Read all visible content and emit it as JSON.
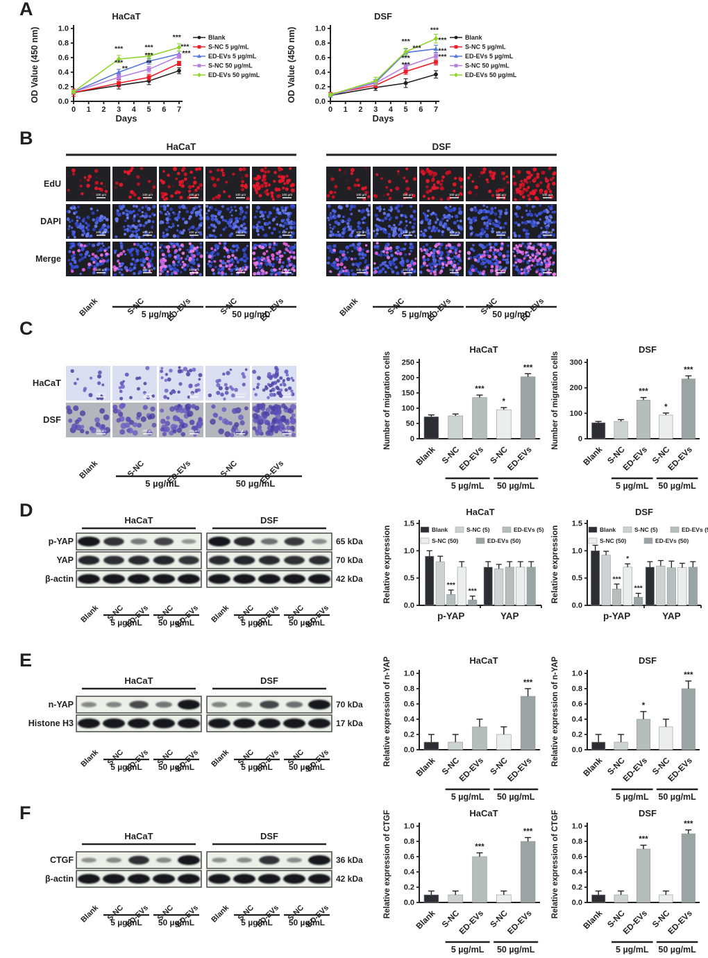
{
  "panels": {
    "a": {
      "label": "A"
    },
    "b": {
      "label": "B",
      "titles": [
        "HaCaT",
        "DSF"
      ],
      "row_labels": [
        "EdU",
        "DAPI",
        "Merge"
      ],
      "col_labels": [
        "Blank",
        "S-NC",
        "ED-EVs",
        "S-NC",
        "ED-EVs"
      ],
      "dose_labels": [
        "5 µg/mL",
        "50 µg/mL"
      ],
      "scale_bar": "100 µm",
      "edu_counts": [
        [
          16,
          18,
          42,
          26,
          58
        ],
        [
          18,
          20,
          46,
          28,
          66
        ]
      ]
    },
    "c": {
      "label": "C",
      "row_labels": [
        "HaCaT",
        "DSF"
      ],
      "col_labels": [
        "Blank",
        "S-NC",
        "ED-EVs",
        "S-NC",
        "ED-EVs"
      ],
      "dose_labels": [
        "5 µg/mL",
        "50 µg/mL"
      ],
      "scale_bar": "100 µm",
      "cell_counts": [
        [
          14,
          16,
          36,
          22,
          55
        ],
        [
          26,
          30,
          52,
          22,
          88
        ]
      ]
    },
    "d": {
      "label": "D",
      "titles": [
        "HaCaT",
        "DSF"
      ],
      "lane_labels": [
        "Blank",
        "S-NC",
        "ED-EVs",
        "S-NC",
        "ED-EVs"
      ],
      "dose_labels": [
        "5 µg/mL",
        "50 µg/mL"
      ],
      "rows": [
        {
          "name": "p-YAP",
          "kda": "65 kDa",
          "bands": [
            [
              1,
              0.82,
              0.4,
              0.72,
              0.22
            ],
            [
              1,
              0.88,
              0.45,
              0.78,
              0.28
            ]
          ]
        },
        {
          "name": "YAP",
          "kda": "70 kDa",
          "bands": [
            [
              0.9,
              0.85,
              0.88,
              0.9,
              0.82
            ],
            [
              0.88,
              0.9,
              0.88,
              0.85,
              0.86
            ]
          ]
        },
        {
          "name": "β-actin",
          "kda": "42 kDa",
          "bands": [
            [
              1,
              1,
              1,
              1,
              1
            ],
            [
              1,
              1,
              1,
              1,
              1
            ]
          ]
        }
      ]
    },
    "e": {
      "label": "E",
      "titles": [
        "HaCaT",
        "DSF"
      ],
      "lane_labels": [
        "Blank",
        "S-NC",
        "ED-EVs",
        "S-NC",
        "ED-EVs"
      ],
      "dose_labels": [
        "5 µg/mL",
        "50 µg/mL"
      ],
      "rows": [
        {
          "name": "n-YAP",
          "kda": "70 kDa",
          "bands": [
            [
              0.3,
              0.32,
              0.68,
              0.42,
              1
            ],
            [
              0.32,
              0.35,
              0.7,
              0.45,
              1
            ]
          ]
        },
        {
          "name": "Histone H3",
          "kda": "17 kDa",
          "bands": [
            [
              1,
              1,
              1,
              1,
              1
            ],
            [
              1,
              1,
              1,
              1,
              1
            ]
          ]
        }
      ]
    },
    "f": {
      "label": "F",
      "titles": [
        "HaCaT",
        "DSF"
      ],
      "lane_labels": [
        "Blank",
        "S-NC",
        "ED-EVs",
        "S-NC",
        "ED-EVs"
      ],
      "dose_labels": [
        "5 µg/mL",
        "50 µg/mL"
      ],
      "rows": [
        {
          "name": "CTGF",
          "kda": "36 kDa",
          "bands": [
            [
              0.25,
              0.3,
              0.85,
              0.3,
              1
            ],
            [
              0.25,
              0.28,
              0.82,
              0.28,
              1
            ]
          ]
        },
        {
          "name": "β-actin",
          "kda": "42 kDa",
          "bands": [
            [
              1,
              1,
              1,
              1,
              1
            ],
            [
              1,
              1,
              1,
              1,
              1
            ]
          ]
        }
      ]
    }
  },
  "palette": {
    "axis": "#231f20",
    "bar_colors": [
      "#2d2d34",
      "#ccd3d2",
      "#b6bebd",
      "#eceeee",
      "#9ba4a4"
    ]
  },
  "chart_data": [
    {
      "id": "a_hacat",
      "type": "line",
      "title": "HaCaT",
      "xlabel": "Days",
      "ylabel": "OD Value (450 nm)",
      "x": [
        0,
        3,
        5,
        7
      ],
      "xticks": [
        0,
        1,
        2,
        3,
        4,
        5,
        6,
        7
      ],
      "ylim": [
        0,
        1.0
      ],
      "yticks": [
        0,
        0.2,
        0.4,
        0.6,
        0.8,
        1.0
      ],
      "series": [
        {
          "name": "Blank",
          "color": "#231f20",
          "marker": "circle",
          "values": [
            0.12,
            0.22,
            0.28,
            0.42
          ],
          "errors": [
            0.02,
            0.05,
            0.05,
            0.04
          ]
        },
        {
          "name": "S-NC 5 µg/mL",
          "color": "#ee1c25",
          "marker": "square",
          "values": [
            0.12,
            0.25,
            0.33,
            0.52
          ],
          "errors": [
            0.05,
            0.05,
            0.04,
            0.03
          ]
        },
        {
          "name": "ED-EVs 5 µg/mL",
          "color": "#5577d9",
          "marker": "triangle",
          "values": [
            0.13,
            0.4,
            0.55,
            0.65
          ],
          "errors": [
            0.02,
            0.04,
            0.04,
            0.04
          ]
        },
        {
          "name": "S-NC 50 µg/mL",
          "color": "#b87de2",
          "marker": "square",
          "values": [
            0.13,
            0.33,
            0.44,
            0.62
          ],
          "errors": [
            0.02,
            0.04,
            0.04,
            0.03
          ]
        },
        {
          "name": "ED-EVs 50 µg/mL",
          "color": "#90d42c",
          "marker": "diamond",
          "values": [
            0.13,
            0.58,
            0.62,
            0.74
          ],
          "errors": [
            0.02,
            0.05,
            0.04,
            0.05
          ]
        }
      ],
      "annotations": [
        {
          "x": 3,
          "y": 0.69,
          "text": "***"
        },
        {
          "x": 3,
          "y": 0.5,
          "text": "***"
        },
        {
          "x": 3.4,
          "y": 0.42,
          "text": "**"
        },
        {
          "x": 5,
          "y": 0.71,
          "text": "***"
        },
        {
          "x": 5,
          "y": 0.6,
          "text": "***"
        },
        {
          "x": 5,
          "y": 0.5,
          "text": "**"
        },
        {
          "x": 6.85,
          "y": 0.85,
          "text": "***"
        },
        {
          "x": 7.1,
          "y": 0.72,
          "text": "***",
          "anchor": "start"
        },
        {
          "x": 7.2,
          "y": 0.63,
          "text": "***",
          "anchor": "start"
        }
      ]
    },
    {
      "id": "a_dsf",
      "type": "line",
      "title": "DSF",
      "xlabel": "Days",
      "ylabel": "OD Value (450 nm)",
      "x": [
        0,
        3,
        5,
        7
      ],
      "xticks": [
        0,
        1,
        2,
        3,
        4,
        5,
        6,
        7
      ],
      "ylim": [
        0,
        1.0
      ],
      "yticks": [
        0,
        0.2,
        0.4,
        0.6,
        0.8,
        1.0
      ],
      "series": [
        {
          "name": "Blank",
          "color": "#231f20",
          "marker": "circle",
          "values": [
            0.08,
            0.19,
            0.25,
            0.37
          ],
          "errors": [
            0.02,
            0.04,
            0.06,
            0.05
          ]
        },
        {
          "name": "S-NC 5 µg/mL",
          "color": "#ee1c25",
          "marker": "square",
          "values": [
            0.1,
            0.22,
            0.41,
            0.54
          ],
          "errors": [
            0.02,
            0.03,
            0.04,
            0.04
          ]
        },
        {
          "name": "ED-EVs 5 µg/mL",
          "color": "#5577d9",
          "marker": "triangle",
          "values": [
            0.08,
            0.26,
            0.67,
            0.72
          ],
          "errors": [
            0.02,
            0.04,
            0.05,
            0.05
          ]
        },
        {
          "name": "S-NC 50 µg/mL",
          "color": "#b87de2",
          "marker": "square",
          "values": [
            0.09,
            0.25,
            0.48,
            0.62
          ],
          "errors": [
            0.02,
            0.03,
            0.04,
            0.04
          ]
        },
        {
          "name": "ED-EVs 50 µg/mL",
          "color": "#90d42c",
          "marker": "diamond",
          "values": [
            0.09,
            0.28,
            0.68,
            0.86
          ],
          "errors": [
            0.02,
            0.05,
            0.05,
            0.06
          ]
        }
      ],
      "annotations": [
        {
          "x": 5,
          "y": 0.79,
          "text": "***"
        },
        {
          "x": 5.45,
          "y": 0.7,
          "text": "***",
          "anchor": "start"
        },
        {
          "x": 5,
          "y": 0.56,
          "text": "***"
        },
        {
          "x": 5,
          "y": 0.47,
          "text": "***"
        },
        {
          "x": 6.9,
          "y": 0.95,
          "text": "***"
        },
        {
          "x": 7.15,
          "y": 0.81,
          "text": "***",
          "anchor": "start"
        },
        {
          "x": 7.15,
          "y": 0.66,
          "text": "***",
          "anchor": "start"
        },
        {
          "x": 7.15,
          "y": 0.58,
          "text": "***",
          "anchor": "start"
        }
      ]
    },
    {
      "id": "c_hacat",
      "type": "bar",
      "title": "HaCaT",
      "ylabel": "Number of migration cells",
      "ylim": [
        0,
        250
      ],
      "yticks": [
        0,
        50,
        100,
        150,
        200,
        250
      ],
      "categories": [
        "Blank",
        "S-NC",
        "ED-EVs",
        "S-NC",
        "ED-EVs"
      ],
      "values": [
        72,
        75,
        135,
        95,
        203
      ],
      "errors": [
        6,
        6,
        8,
        7,
        10
      ],
      "sig": [
        "",
        "",
        "***",
        "*",
        "***"
      ],
      "dose_groups": [
        {
          "label": "5 µg/mL",
          "from": 1,
          "to": 2
        },
        {
          "label": "50 µg/mL",
          "from": 3,
          "to": 4
        }
      ]
    },
    {
      "id": "c_dsf",
      "type": "bar",
      "title": "DSF",
      "ylabel": "Number of migration cells",
      "ylim": [
        0,
        300
      ],
      "yticks": [
        0,
        100,
        200,
        300
      ],
      "categories": [
        "Blank",
        "S-NC",
        "ED-EVs",
        "S-NC",
        "ED-EVs"
      ],
      "values": [
        63,
        68,
        152,
        93,
        235
      ],
      "errors": [
        5,
        7,
        10,
        8,
        12
      ],
      "sig": [
        "",
        "",
        "***",
        "*",
        "***"
      ],
      "dose_groups": [
        {
          "label": "5 µg/mL",
          "from": 1,
          "to": 2
        },
        {
          "label": "50 µg/mL",
          "from": 3,
          "to": 4
        }
      ]
    },
    {
      "id": "d_hacat",
      "type": "groupbar",
      "title": "HaCaT",
      "ylabel": "Relative expression",
      "ylim": [
        0,
        1.5
      ],
      "yticks": [
        0,
        0.5,
        1.0,
        1.5
      ],
      "groups": [
        "p-YAP",
        "YAP"
      ],
      "legend": [
        "Blank",
        "S-NC (5)",
        "ED-EVs (5)",
        "S-NC (50)",
        "ED-EVs (50)"
      ],
      "values": [
        [
          0.9,
          0.8,
          0.2,
          0.7,
          0.1
        ],
        [
          0.7,
          0.67,
          0.7,
          0.7,
          0.7
        ]
      ],
      "errors": [
        [
          0.1,
          0.1,
          0.08,
          0.1,
          0.07
        ],
        [
          0.1,
          0.08,
          0.1,
          0.1,
          0.1
        ]
      ],
      "sig": [
        [
          "",
          "",
          "***",
          "",
          "***"
        ],
        [
          "",
          "",
          "",
          "",
          ""
        ]
      ]
    },
    {
      "id": "d_dsf",
      "type": "groupbar",
      "title": "DSF",
      "ylabel": "Relative expression",
      "ylim": [
        0,
        1.5
      ],
      "yticks": [
        0,
        0.5,
        1.0,
        1.5
      ],
      "groups": [
        "p-YAP",
        "YAP"
      ],
      "legend": [
        "Blank",
        "S-NC (5)",
        "ED-EVs (5)",
        "S-NC (50)",
        "ED-EVs (50)"
      ],
      "values": [
        [
          1.0,
          0.92,
          0.3,
          0.7,
          0.15
        ],
        [
          0.7,
          0.72,
          0.69,
          0.69,
          0.7
        ]
      ],
      "errors": [
        [
          0.1,
          0.07,
          0.09,
          0.06,
          0.07
        ],
        [
          0.1,
          0.1,
          0.12,
          0.08,
          0.1
        ]
      ],
      "sig": [
        [
          "",
          "",
          "***",
          "*",
          "***"
        ],
        [
          "",
          "",
          "",
          "",
          ""
        ]
      ]
    },
    {
      "id": "e_hacat",
      "type": "bar",
      "title": "HaCaT",
      "ylabel": "Relative expression of n-YAP",
      "ylim": [
        0,
        1.0
      ],
      "yticks": [
        0,
        0.2,
        0.4,
        0.6,
        0.8,
        1.0
      ],
      "categories": [
        "Blank",
        "S-NC",
        "ED-EVs",
        "S-NC",
        "ED-EVs"
      ],
      "values": [
        0.1,
        0.1,
        0.3,
        0.2,
        0.7
      ],
      "errors": [
        0.1,
        0.1,
        0.1,
        0.1,
        0.1
      ],
      "sig": [
        "",
        "",
        "",
        "",
        "***"
      ],
      "dose_groups": [
        {
          "label": "5 µg/mL",
          "from": 1,
          "to": 2
        },
        {
          "label": "50 µg/mL",
          "from": 3,
          "to": 4
        }
      ]
    },
    {
      "id": "e_dsf",
      "type": "bar",
      "title": "DSF",
      "ylabel": "Relative expression of n-YAP",
      "ylim": [
        0,
        1.0
      ],
      "yticks": [
        0,
        0.2,
        0.4,
        0.6,
        0.8,
        1.0
      ],
      "categories": [
        "Blank",
        "S-NC",
        "ED-EVs",
        "S-NC",
        "ED-EVs"
      ],
      "values": [
        0.1,
        0.1,
        0.4,
        0.3,
        0.8
      ],
      "errors": [
        0.1,
        0.1,
        0.1,
        0.1,
        0.1
      ],
      "sig": [
        "",
        "",
        "*",
        "",
        "***"
      ],
      "dose_groups": [
        {
          "label": "5 µg/mL",
          "from": 1,
          "to": 2
        },
        {
          "label": "50 µg/mL",
          "from": 3,
          "to": 4
        }
      ]
    },
    {
      "id": "f_hacat",
      "type": "bar",
      "title": "HaCaT",
      "ylabel": "Relative expression of CTGF",
      "ylim": [
        0,
        1.0
      ],
      "yticks": [
        0,
        0.2,
        0.4,
        0.6,
        0.8,
        1.0
      ],
      "categories": [
        "Blank",
        "S-NC",
        "ED-EVs",
        "S-NC",
        "ED-EVs"
      ],
      "values": [
        0.1,
        0.1,
        0.6,
        0.1,
        0.8
      ],
      "errors": [
        0.05,
        0.05,
        0.05,
        0.05,
        0.05
      ],
      "sig": [
        "",
        "",
        "***",
        "",
        "***"
      ],
      "dose_groups": [
        {
          "label": "5 µg/mL",
          "from": 1,
          "to": 2
        },
        {
          "label": "50 µg/mL",
          "from": 3,
          "to": 4
        }
      ]
    },
    {
      "id": "f_dsf",
      "type": "bar",
      "title": "DSF",
      "ylabel": "Relative expression of CTGF",
      "ylim": [
        0,
        1.0
      ],
      "yticks": [
        0,
        0.2,
        0.4,
        0.6,
        0.8,
        1.0
      ],
      "categories": [
        "Blank",
        "S-NC",
        "ED-EVs",
        "S-NC",
        "ED-EVs"
      ],
      "values": [
        0.1,
        0.1,
        0.7,
        0.1,
        0.9
      ],
      "errors": [
        0.05,
        0.05,
        0.05,
        0.05,
        0.05
      ],
      "sig": [
        "",
        "",
        "***",
        "",
        "***"
      ],
      "dose_groups": [
        {
          "label": "5 µg/mL",
          "from": 1,
          "to": 2
        },
        {
          "label": "50 µg/mL",
          "from": 3,
          "to": 4
        }
      ]
    }
  ]
}
